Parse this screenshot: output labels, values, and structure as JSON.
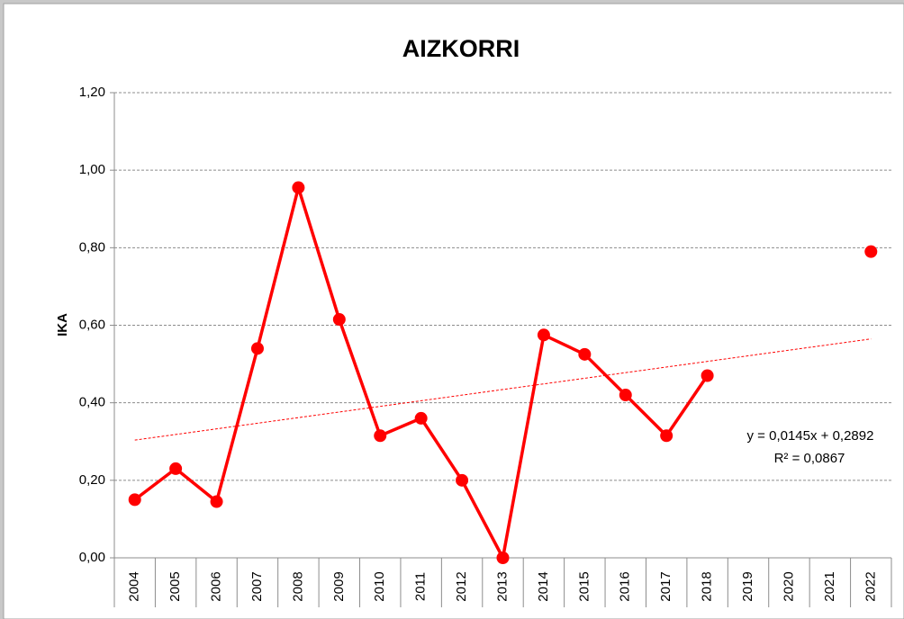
{
  "chart_data": {
    "type": "line",
    "title": "AIZKORRI",
    "y_label": "IKA",
    "categories": [
      "2004",
      "2005",
      "2006",
      "2007",
      "2008",
      "2009",
      "2010",
      "2011",
      "2012",
      "2013",
      "2014",
      "2015",
      "2016",
      "2017",
      "2018",
      "2019",
      "2020",
      "2021",
      "2022"
    ],
    "series": [
      {
        "name": "IKA",
        "color": "#ff0000",
        "values": [
          0.15,
          0.23,
          0.145,
          0.54,
          0.955,
          0.615,
          0.315,
          0.36,
          0.2,
          0.0,
          0.575,
          0.525,
          0.42,
          0.315,
          0.47,
          null,
          null,
          null,
          0.79
        ]
      }
    ],
    "trendline": {
      "slope": 0.0145,
      "intercept": 0.2892,
      "label": "y = 0,0145x + 0,2892",
      "r2": 0.0867,
      "r2_label": "R² = 0,0867"
    },
    "ylim": [
      0,
      1.2
    ],
    "yticks": [
      {
        "value": 0,
        "label": "0,00"
      },
      {
        "value": 0.2,
        "label": "0,20"
      },
      {
        "value": 0.4,
        "label": "0,40"
      },
      {
        "value": 0.6,
        "label": "0,60"
      },
      {
        "value": 0.8,
        "label": "0,80"
      },
      {
        "value": 1.0,
        "label": "1,00"
      },
      {
        "value": 1.2,
        "label": "1,20"
      }
    ],
    "grid": true
  }
}
